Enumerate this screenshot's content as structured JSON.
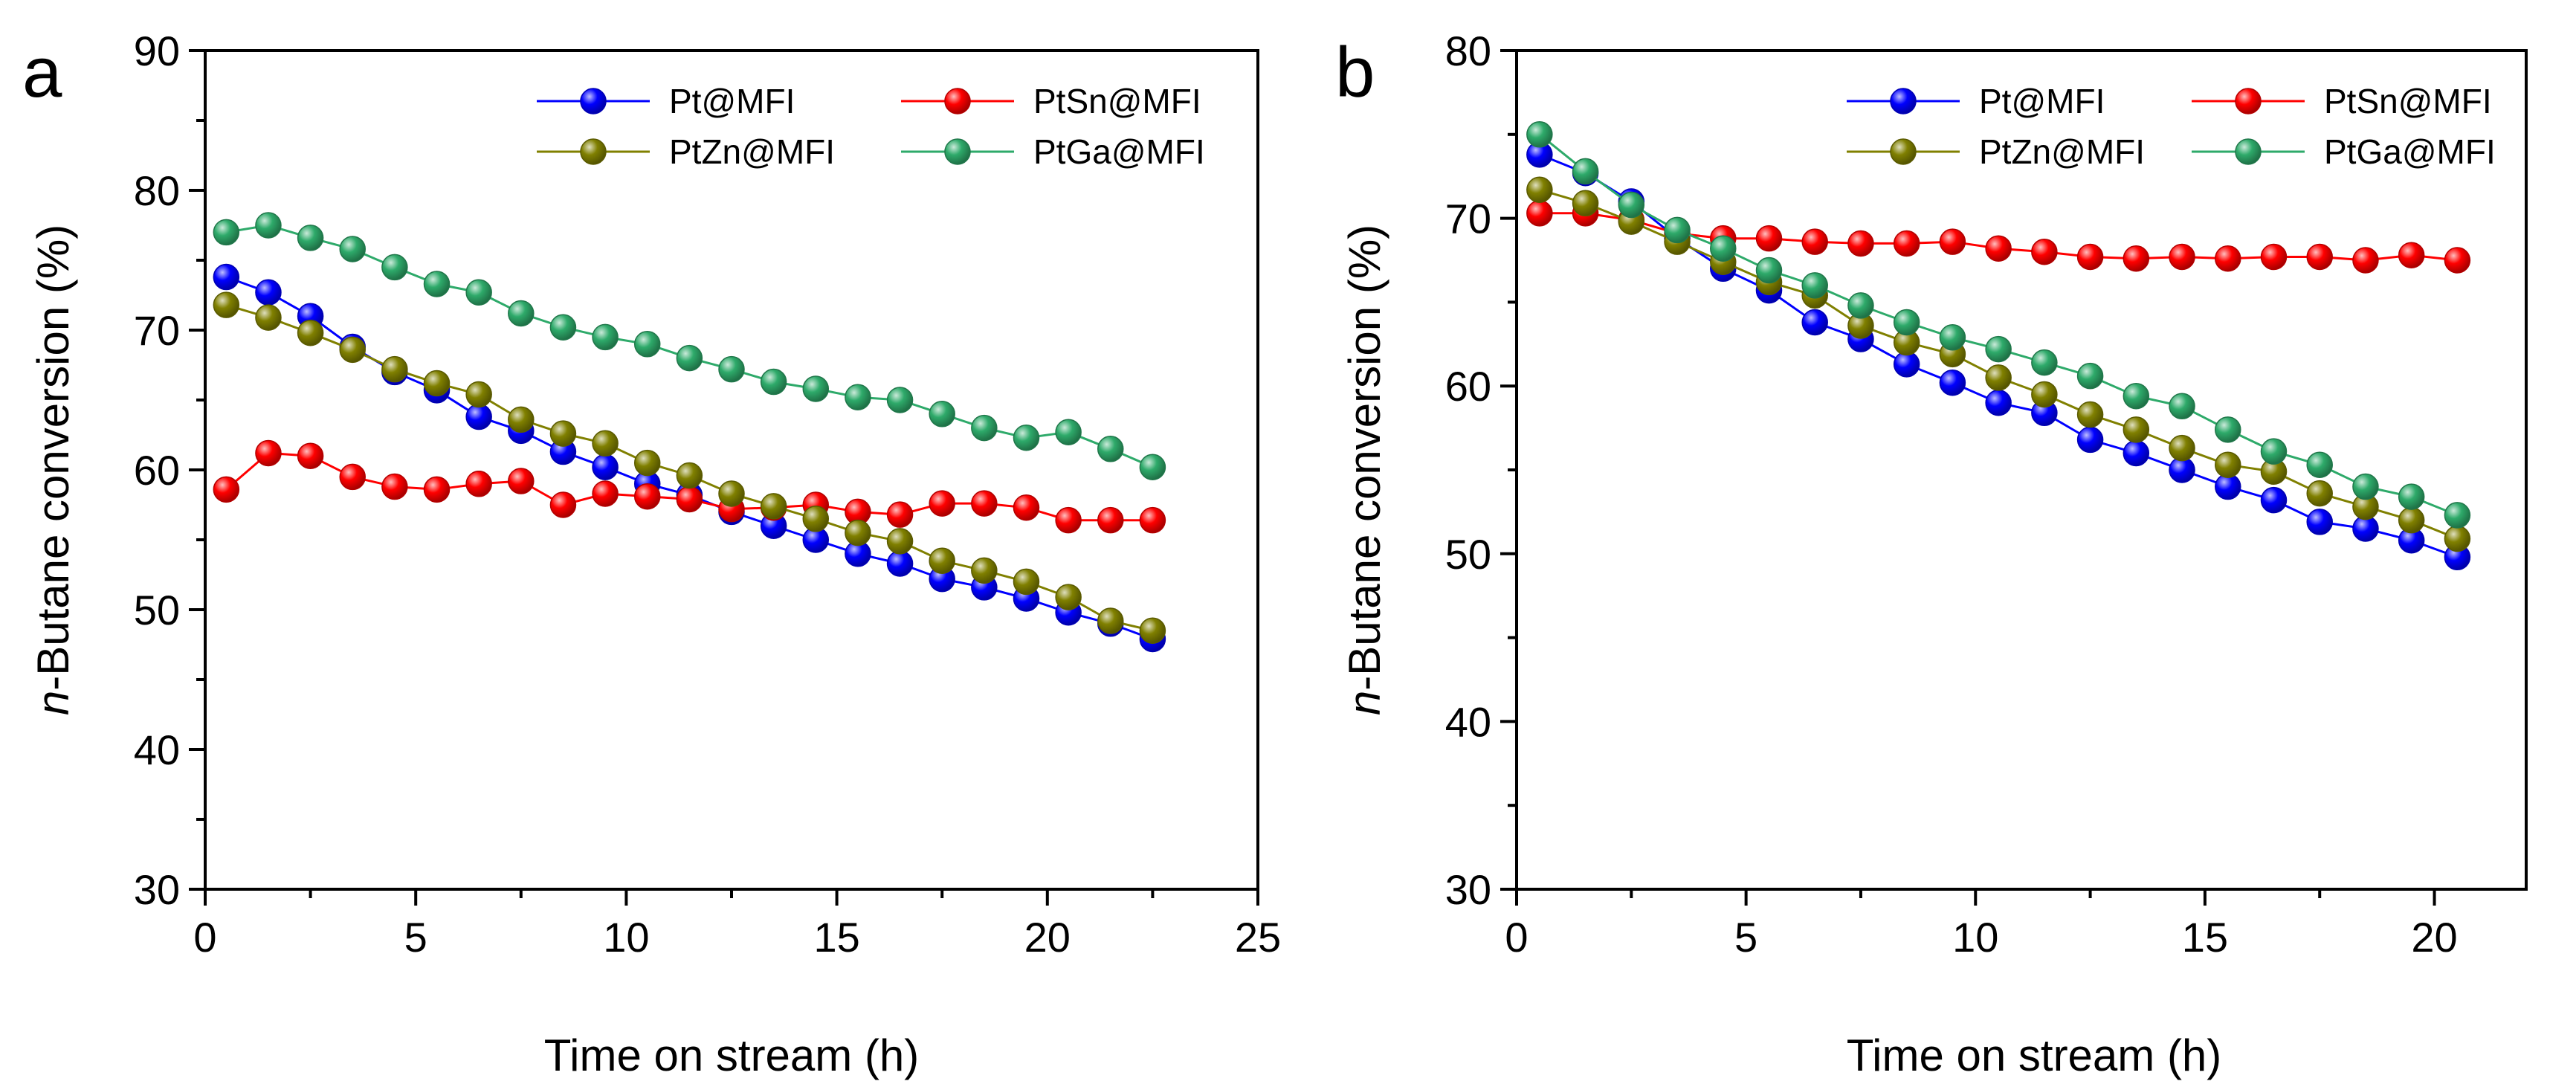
{
  "chart_data": [
    {
      "type": "line",
      "panel_label": "a",
      "xlabel": "Time on stream (h)",
      "ylabel_italic": "n",
      "ylabel_rest": "-Butane conversion (%)",
      "xlim": [
        0,
        25
      ],
      "ylim": [
        30,
        90
      ],
      "xticks": [
        0,
        5,
        10,
        15,
        20,
        25
      ],
      "yticks": [
        30,
        40,
        50,
        60,
        70,
        80,
        90
      ],
      "grid": false,
      "legend_position": "top-right",
      "series": [
        {
          "name": "Pt@MFI",
          "color": "#0000ff",
          "x": [
            0.5,
            1.5,
            2.5,
            3.5,
            4.5,
            5.5,
            6.5,
            7.5,
            8.5,
            9.5,
            10.5,
            11.5,
            12.5,
            13.5,
            14.5,
            15.5,
            16.5,
            17.5,
            18.5,
            19.5,
            20.5,
            21.5,
            22.5
          ],
          "y": [
            73.8,
            72.7,
            71.0,
            68.8,
            67.0,
            65.7,
            63.8,
            62.8,
            61.3,
            60.2,
            59.0,
            58.2,
            57.0,
            56.0,
            55.0,
            54.0,
            53.3,
            52.2,
            51.6,
            50.8,
            49.8,
            49.0,
            47.9
          ]
        },
        {
          "name": "PtSn@MFI",
          "color": "#ff0000",
          "x": [
            0.5,
            1.5,
            2.5,
            3.5,
            4.5,
            5.5,
            6.5,
            7.5,
            8.5,
            9.5,
            10.5,
            11.5,
            12.5,
            13.5,
            14.5,
            15.5,
            16.5,
            17.5,
            18.5,
            19.5,
            20.5,
            21.5,
            22.5
          ],
          "y": [
            58.6,
            61.2,
            61.0,
            59.5,
            58.8,
            58.6,
            59.0,
            59.2,
            57.5,
            58.3,
            58.1,
            57.9,
            57.2,
            57.3,
            57.5,
            57.0,
            56.8,
            57.6,
            57.6,
            57.3,
            56.4,
            56.4,
            56.4
          ]
        },
        {
          "name": "PtZn@MFI",
          "color": "#808000",
          "x": [
            0.5,
            1.5,
            2.5,
            3.5,
            4.5,
            5.5,
            6.5,
            7.5,
            8.5,
            9.5,
            10.5,
            11.5,
            12.5,
            13.5,
            14.5,
            15.5,
            16.5,
            17.5,
            18.5,
            19.5,
            20.5,
            21.5,
            22.5
          ],
          "y": [
            71.8,
            70.9,
            69.8,
            68.6,
            67.2,
            66.2,
            65.4,
            63.6,
            62.6,
            61.9,
            60.5,
            59.6,
            58.3,
            57.4,
            56.5,
            55.5,
            54.9,
            53.5,
            52.8,
            52.0,
            50.9,
            49.2,
            48.5
          ]
        },
        {
          "name": "PtGa@MFI",
          "color": "#2eaa6a",
          "x": [
            0.5,
            1.5,
            2.5,
            3.5,
            4.5,
            5.5,
            6.5,
            7.5,
            8.5,
            9.5,
            10.5,
            11.5,
            12.5,
            13.5,
            14.5,
            15.5,
            16.5,
            17.5,
            18.5,
            19.5,
            20.5,
            21.5,
            22.5
          ],
          "y": [
            77.0,
            77.5,
            76.6,
            75.8,
            74.5,
            73.3,
            72.7,
            71.2,
            70.2,
            69.5,
            69.0,
            68.0,
            67.2,
            66.3,
            65.8,
            65.2,
            65.0,
            64.0,
            63.0,
            62.3,
            62.7,
            61.5,
            60.2
          ]
        }
      ]
    },
    {
      "type": "line",
      "panel_label": "b",
      "xlabel": "Time on stream (h)",
      "ylabel_italic": "n",
      "ylabel_rest": "-Butane conversion (%)",
      "xlim": [
        0,
        22
      ],
      "ylim": [
        30,
        80
      ],
      "xticks": [
        0,
        5,
        10,
        15,
        20
      ],
      "yticks": [
        30,
        40,
        50,
        60,
        70,
        80
      ],
      "grid": false,
      "legend_position": "top-right",
      "series": [
        {
          "name": "Pt@MFI",
          "color": "#0000ff",
          "x": [
            0.5,
            1.5,
            2.5,
            3.5,
            4.5,
            5.5,
            6.5,
            7.5,
            8.5,
            9.5,
            10.5,
            11.5,
            12.5,
            13.5,
            14.5,
            15.5,
            16.5,
            17.5,
            18.5,
            19.5,
            20.5
          ],
          "y": [
            73.8,
            72.7,
            71.0,
            68.8,
            67.0,
            65.7,
            63.8,
            62.8,
            61.3,
            60.2,
            59.0,
            58.4,
            56.8,
            56.0,
            55.0,
            54.0,
            53.2,
            51.9,
            51.5,
            50.8,
            49.8
          ]
        },
        {
          "name": "PtSn@MFI",
          "color": "#ff0000",
          "x": [
            0.5,
            1.5,
            2.5,
            3.5,
            4.5,
            5.5,
            6.5,
            7.5,
            8.5,
            9.5,
            10.5,
            11.5,
            12.5,
            13.5,
            14.5,
            15.5,
            16.5,
            17.5,
            18.5,
            19.5,
            20.5
          ],
          "y": [
            70.3,
            70.3,
            69.9,
            69.1,
            68.8,
            68.8,
            68.6,
            68.5,
            68.5,
            68.6,
            68.2,
            68.0,
            67.7,
            67.6,
            67.7,
            67.6,
            67.7,
            67.7,
            67.5,
            67.8,
            67.5
          ]
        },
        {
          "name": "PtZn@MFI",
          "color": "#808000",
          "x": [
            0.5,
            1.5,
            2.5,
            3.5,
            4.5,
            5.5,
            6.5,
            7.5,
            8.5,
            9.5,
            10.5,
            11.5,
            12.5,
            13.5,
            14.5,
            15.5,
            16.5,
            17.5,
            18.5,
            19.5,
            20.5
          ],
          "y": [
            71.7,
            70.9,
            69.8,
            68.6,
            67.4,
            66.2,
            65.4,
            63.6,
            62.6,
            61.9,
            60.5,
            59.5,
            58.3,
            57.4,
            56.3,
            55.3,
            54.9,
            53.6,
            52.8,
            52.0,
            50.9
          ]
        },
        {
          "name": "PtGa@MFI",
          "color": "#2eaa6a",
          "x": [
            0.5,
            1.5,
            2.5,
            3.5,
            4.5,
            5.5,
            6.5,
            7.5,
            8.5,
            9.5,
            10.5,
            11.5,
            12.5,
            13.5,
            14.5,
            15.5,
            16.5,
            17.5,
            18.5,
            19.5,
            20.5
          ],
          "y": [
            75.0,
            72.8,
            70.8,
            69.3,
            68.2,
            66.9,
            66.0,
            64.8,
            63.8,
            62.9,
            62.2,
            61.4,
            60.6,
            59.4,
            58.8,
            57.4,
            56.1,
            55.3,
            54.0,
            53.4,
            52.3
          ]
        }
      ]
    }
  ]
}
